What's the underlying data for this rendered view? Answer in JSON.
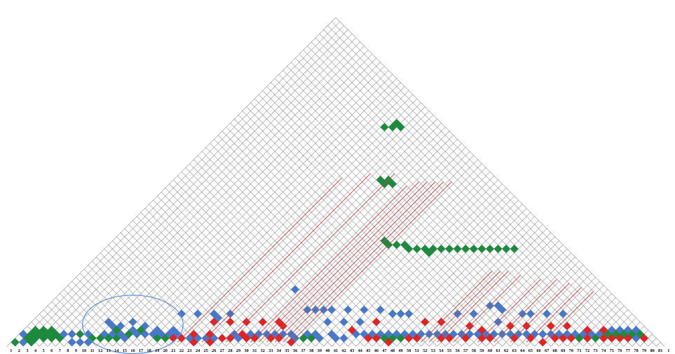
{
  "colors": {
    "grid": "#8a8a8a",
    "green": "#1e8a3e",
    "blue": "#4a78c8",
    "red": "#e02424",
    "line": "#c44040",
    "ellipse": "#5b8fd6",
    "outline": "#111111"
  },
  "axis_labels": [
    "1",
    "2",
    "3",
    "4",
    "5",
    "6",
    "7",
    "8",
    "9",
    "10",
    "11",
    "12",
    "13",
    "14",
    "15",
    "16",
    "17",
    "18",
    "19",
    "20",
    "21",
    "22",
    "23",
    "24",
    "25",
    "26",
    "27",
    "28",
    "29",
    "30",
    "31",
    "32",
    "33",
    "34",
    "35",
    "36",
    "37",
    "38",
    "39",
    "40",
    "41",
    "42",
    "43",
    "44",
    "45",
    "46",
    "47",
    "48",
    "49",
    "50",
    "51",
    "52",
    "53",
    "54",
    "55",
    "56",
    "57",
    "58",
    "59",
    "60",
    "61",
    "62",
    "63",
    "64",
    "65",
    "66",
    "67",
    "68",
    "69",
    "70",
    "71",
    "72",
    "73",
    "74",
    "75",
    "76",
    "77",
    "78",
    "79",
    "80",
    "81",
    "1"
  ],
  "cells": {
    "green": [
      [
        1,
        2
      ],
      [
        2,
        4
      ],
      [
        3,
        4
      ],
      [
        2,
        5
      ],
      [
        3,
        5
      ],
      [
        3,
        6
      ],
      [
        4,
        6
      ],
      [
        2,
        6
      ],
      [
        4,
        7
      ],
      [
        5,
        7
      ],
      [
        3,
        7
      ],
      [
        4,
        8
      ],
      [
        5,
        8
      ],
      [
        6,
        8
      ],
      [
        8,
        11
      ],
      [
        10,
        12
      ],
      [
        11,
        13
      ],
      [
        12,
        14
      ],
      [
        13,
        15
      ],
      [
        12,
        16
      ],
      [
        14,
        17
      ],
      [
        15,
        19
      ],
      [
        18,
        20
      ],
      [
        19,
        21
      ],
      [
        36,
        38
      ],
      [
        37,
        39
      ],
      [
        46,
        48
      ],
      [
        47,
        49
      ],
      [
        48,
        50
      ],
      [
        70,
        72
      ],
      [
        72,
        74
      ],
      [
        73,
        76
      ],
      [
        74,
        77
      ],
      [
        75,
        78
      ],
      [
        76,
        79
      ],
      [
        77,
        80
      ],
      [
        20,
        74
      ],
      [
        21,
        75
      ],
      [
        21,
        76
      ],
      [
        22,
        76
      ],
      [
        26,
        67
      ],
      [
        27,
        67
      ],
      [
        27,
        68
      ],
      [
        28,
        68
      ],
      [
        34,
        60
      ],
      [
        35,
        60
      ],
      [
        36,
        61
      ],
      [
        37,
        62
      ],
      [
        38,
        62
      ],
      [
        39,
        63
      ],
      [
        40,
        64
      ],
      [
        41,
        64
      ],
      [
        41,
        65
      ],
      [
        42,
        66
      ],
      [
        43,
        67
      ],
      [
        44,
        68
      ],
      [
        45,
        69
      ],
      [
        46,
        70
      ],
      [
        47,
        71
      ],
      [
        48,
        72
      ],
      [
        49,
        73
      ],
      [
        50,
        74
      ],
      [
        51,
        75
      ]
    ],
    "blue": [
      [
        1,
        4
      ],
      [
        2,
        3
      ],
      [
        6,
        9
      ],
      [
        7,
        10
      ],
      [
        8,
        9
      ],
      [
        9,
        10
      ],
      [
        9,
        12
      ],
      [
        10,
        11
      ],
      [
        11,
        14
      ],
      [
        12,
        15
      ],
      [
        13,
        16
      ],
      [
        14,
        16
      ],
      [
        14,
        18
      ],
      [
        15,
        18
      ],
      [
        16,
        19
      ],
      [
        17,
        20
      ],
      [
        17,
        21
      ],
      [
        18,
        21
      ],
      [
        19,
        22
      ],
      [
        19,
        23
      ],
      [
        20,
        22
      ],
      [
        20,
        23
      ],
      [
        21,
        23
      ],
      [
        22,
        24
      ],
      [
        23,
        25
      ],
      [
        24,
        26
      ],
      [
        25,
        27
      ],
      [
        26,
        28
      ],
      [
        27,
        30
      ],
      [
        28,
        30
      ],
      [
        29,
        32
      ],
      [
        30,
        33
      ],
      [
        31,
        34
      ],
      [
        32,
        35
      ],
      [
        33,
        36
      ],
      [
        34,
        37
      ],
      [
        35,
        37
      ],
      [
        36,
        39
      ],
      [
        37,
        40
      ],
      [
        38,
        40
      ],
      [
        39,
        42
      ],
      [
        40,
        42
      ],
      [
        41,
        43
      ],
      [
        42,
        45
      ],
      [
        43,
        46
      ],
      [
        44,
        47
      ],
      [
        45,
        48
      ],
      [
        46,
        49
      ],
      [
        47,
        50
      ],
      [
        48,
        51
      ],
      [
        49,
        52
      ],
      [
        50,
        53
      ],
      [
        51,
        54
      ],
      [
        52,
        55
      ],
      [
        53,
        56
      ],
      [
        54,
        57
      ],
      [
        55,
        58
      ],
      [
        56,
        59
      ],
      [
        57,
        60
      ],
      [
        58,
        61
      ],
      [
        59,
        62
      ],
      [
        60,
        63
      ],
      [
        61,
        64
      ],
      [
        62,
        65
      ],
      [
        63,
        66
      ],
      [
        64,
        67
      ],
      [
        65,
        68
      ],
      [
        66,
        69
      ],
      [
        67,
        70
      ],
      [
        68,
        71
      ],
      [
        69,
        72
      ],
      [
        70,
        73
      ],
      [
        71,
        74
      ],
      [
        72,
        75
      ],
      [
        73,
        77
      ],
      [
        74,
        78
      ],
      [
        75,
        79
      ],
      [
        76,
        80
      ],
      [
        77,
        79
      ],
      [
        11,
        16
      ],
      [
        12,
        17
      ],
      [
        29,
        43
      ],
      [
        33,
        42
      ],
      [
        34,
        43
      ],
      [
        35,
        44
      ],
      [
        44,
        52
      ],
      [
        45,
        53
      ],
      [
        46,
        54
      ],
      [
        55,
        65
      ],
      [
        56,
        66
      ],
      [
        57,
        66
      ],
      [
        60,
        68
      ],
      [
        61,
        69
      ],
      [
        63,
        71
      ],
      [
        65,
        73
      ],
      [
        22,
        30
      ],
      [
        23,
        30
      ],
      [
        24,
        32
      ],
      [
        36,
        45
      ],
      [
        38,
        47
      ],
      [
        40,
        49
      ],
      [
        42,
        51
      ],
      [
        52,
        60
      ],
      [
        54,
        62
      ],
      [
        58,
        64
      ],
      [
        20,
        28
      ],
      [
        18,
        26
      ],
      [
        15,
        20
      ],
      [
        13,
        19
      ],
      [
        10,
        16
      ],
      [
        37,
        43
      ],
      [
        39,
        45
      ],
      [
        41,
        47
      ]
    ],
    "red": [
      [
        20,
        22
      ],
      [
        21,
        23
      ],
      [
        22,
        25
      ],
      [
        23,
        24
      ],
      [
        24,
        27
      ],
      [
        25,
        26
      ],
      [
        26,
        28
      ],
      [
        27,
        29
      ],
      [
        28,
        31
      ],
      [
        29,
        31
      ],
      [
        30,
        32
      ],
      [
        32,
        34
      ],
      [
        33,
        35
      ],
      [
        35,
        36
      ],
      [
        44,
        46
      ],
      [
        45,
        47
      ],
      [
        47,
        48
      ],
      [
        49,
        51
      ],
      [
        50,
        52
      ],
      [
        53,
        55
      ],
      [
        54,
        56
      ],
      [
        56,
        58
      ],
      [
        58,
        60
      ],
      [
        59,
        61
      ],
      [
        62,
        64
      ],
      [
        64,
        66
      ],
      [
        66,
        67
      ],
      [
        67,
        69
      ],
      [
        68,
        70
      ],
      [
        69,
        71
      ],
      [
        71,
        73
      ],
      [
        73,
        75
      ],
      [
        74,
        76
      ],
      [
        75,
        77
      ],
      [
        76,
        78
      ],
      [
        78,
        80
      ],
      [
        23,
        29
      ],
      [
        25,
        31
      ],
      [
        27,
        33
      ],
      [
        29,
        35
      ],
      [
        31,
        37
      ],
      [
        32,
        37
      ],
      [
        41,
        45
      ],
      [
        43,
        49
      ],
      [
        49,
        55
      ],
      [
        51,
        57
      ],
      [
        55,
        60
      ],
      [
        57,
        61
      ],
      [
        60,
        65
      ],
      [
        62,
        67
      ],
      [
        65,
        70
      ],
      [
        67,
        72
      ],
      [
        70,
        74
      ],
      [
        72,
        76
      ]
    ]
  },
  "red_lines": [
    [
      21,
      62
    ],
    [
      24,
      66
    ],
    [
      27,
      69
    ],
    [
      30,
      69
    ],
    [
      31,
      71
    ],
    [
      32,
      72
    ],
    [
      33,
      73
    ],
    [
      34,
      74
    ],
    [
      35,
      75
    ],
    [
      51,
      69
    ],
    [
      52,
      70
    ],
    [
      53,
      71
    ],
    [
      55,
      72
    ],
    [
      58,
      74
    ],
    [
      60,
      76
    ],
    [
      62,
      77
    ],
    [
      64,
      78
    ],
    [
      66,
      79
    ]
  ],
  "ellipse": {
    "i_center": 12.8,
    "j_center": 18.2,
    "span": 6.2,
    "height_steps": 3.6
  }
}
